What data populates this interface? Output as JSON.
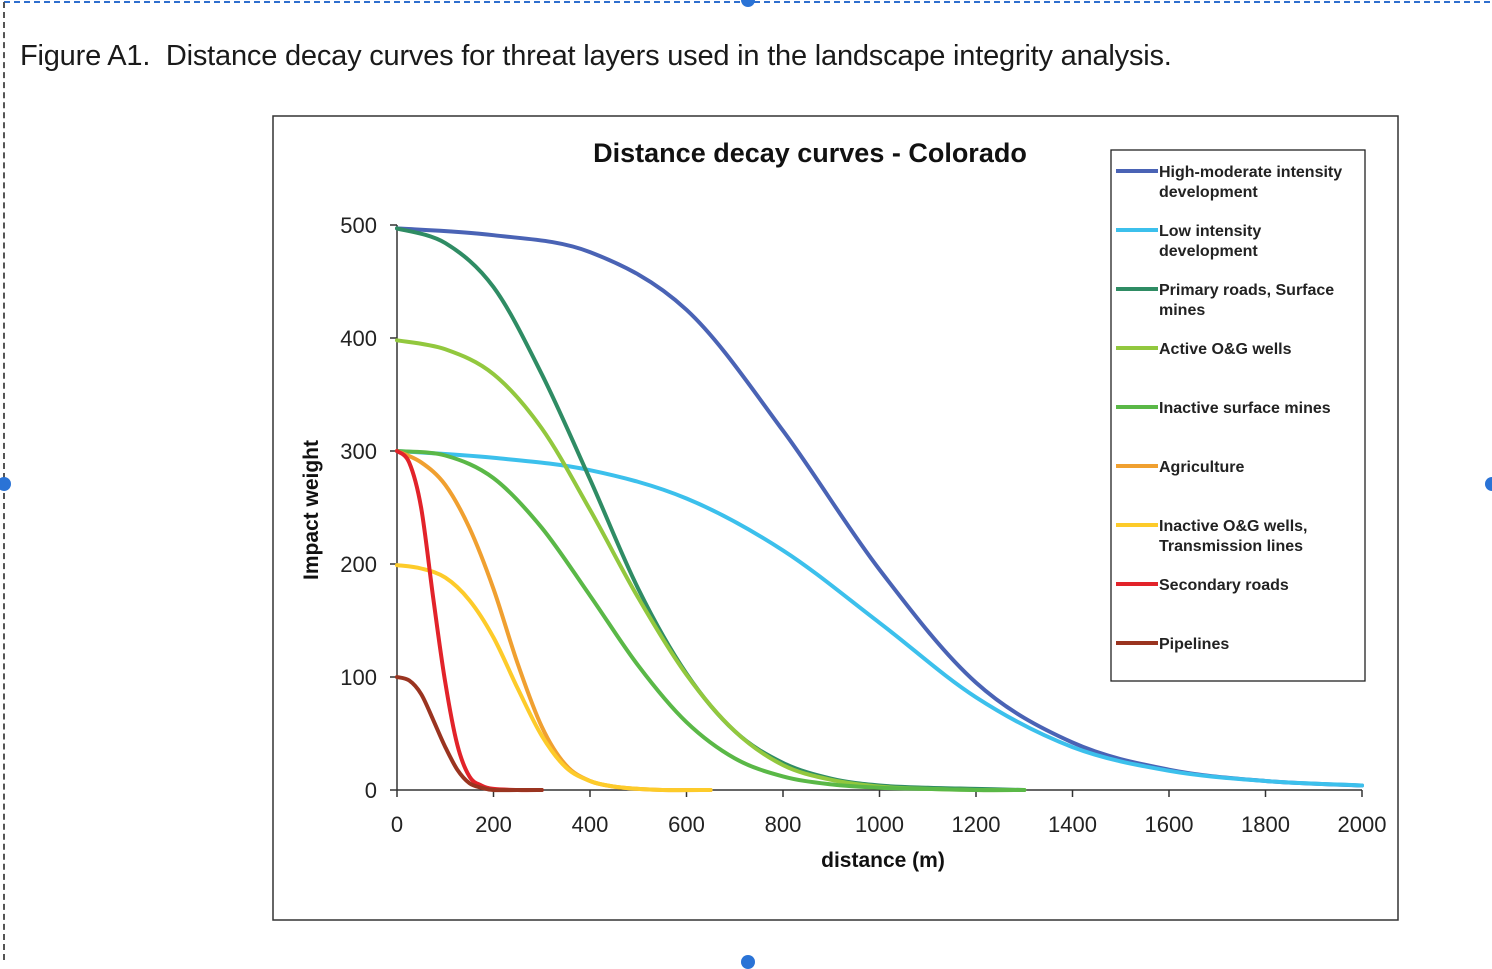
{
  "caption": "Figure A1.  Distance decay curves for threat layers used in the landscape integrity analysis.",
  "colors": {
    "selection_handle": "#2a73d6",
    "axis": "#333333"
  },
  "chart_data": {
    "type": "line",
    "title": "Distance decay curves - Colorado",
    "xlabel": "distance (m)",
    "ylabel": "Impact weight",
    "xlim": [
      0,
      2000
    ],
    "ylim": [
      0,
      500
    ],
    "x_ticks": [
      "0",
      "200",
      "400",
      "600",
      "800",
      "1000",
      "1200",
      "1400",
      "1600",
      "1800",
      "2000"
    ],
    "y_ticks": [
      "0",
      "100",
      "200",
      "300",
      "400",
      "500"
    ],
    "legend_position": "right",
    "series": [
      {
        "name": "High-moderate intensity development",
        "legend_lines": [
          "High-moderate intensity",
          "development"
        ],
        "color": "#4a63b5",
        "x_max": 2000,
        "points": [
          [
            0,
            497
          ],
          [
            200,
            491
          ],
          [
            400,
            476
          ],
          [
            600,
            425
          ],
          [
            800,
            318
          ],
          [
            1000,
            195
          ],
          [
            1200,
            95
          ],
          [
            1400,
            42
          ],
          [
            1600,
            18
          ],
          [
            1800,
            8
          ],
          [
            2000,
            4
          ]
        ]
      },
      {
        "name": "Low intensity development",
        "legend_lines": [
          "Low intensity",
          "development"
        ],
        "color": "#3cc0ec",
        "x_max": 2000,
        "points": [
          [
            0,
            300
          ],
          [
            200,
            294
          ],
          [
            400,
            283
          ],
          [
            600,
            258
          ],
          [
            800,
            212
          ],
          [
            1000,
            148
          ],
          [
            1200,
            82
          ],
          [
            1400,
            38
          ],
          [
            1600,
            17
          ],
          [
            1800,
            8
          ],
          [
            2000,
            4
          ]
        ]
      },
      {
        "name": "Primary roads, Surface mines",
        "legend_lines": [
          "Primary roads, Surface",
          "mines"
        ],
        "color": "#2f8c64",
        "x_max": 1300,
        "points": [
          [
            0,
            497
          ],
          [
            100,
            484
          ],
          [
            200,
            445
          ],
          [
            300,
            368
          ],
          [
            400,
            275
          ],
          [
            500,
            178
          ],
          [
            600,
            103
          ],
          [
            700,
            52
          ],
          [
            800,
            24
          ],
          [
            900,
            10
          ],
          [
            1000,
            4
          ],
          [
            1100,
            2
          ],
          [
            1200,
            1
          ],
          [
            1300,
            0
          ]
        ]
      },
      {
        "name": "Active O&G wells",
        "legend_lines": [
          "Active O&G wells"
        ],
        "color": "#92c83e",
        "x_max": 1300,
        "points": [
          [
            0,
            398
          ],
          [
            100,
            390
          ],
          [
            200,
            368
          ],
          [
            300,
            320
          ],
          [
            400,
            248
          ],
          [
            500,
            170
          ],
          [
            600,
            102
          ],
          [
            700,
            52
          ],
          [
            800,
            22
          ],
          [
            900,
            9
          ],
          [
            1000,
            3
          ],
          [
            1100,
            1
          ],
          [
            1200,
            0
          ],
          [
            1300,
            0
          ]
        ]
      },
      {
        "name": "Inactive surface mines",
        "legend_lines": [
          "Inactive surface mines"
        ],
        "color": "#5ab847",
        "x_max": 1300,
        "points": [
          [
            0,
            300
          ],
          [
            100,
            296
          ],
          [
            200,
            276
          ],
          [
            300,
            232
          ],
          [
            400,
            172
          ],
          [
            500,
            110
          ],
          [
            600,
            60
          ],
          [
            700,
            28
          ],
          [
            800,
            12
          ],
          [
            900,
            5
          ],
          [
            1000,
            2
          ],
          [
            1100,
            1
          ],
          [
            1200,
            0
          ],
          [
            1300,
            0
          ]
        ]
      },
      {
        "name": "Agriculture",
        "legend_lines": [
          "Agriculture"
        ],
        "color": "#f0a030",
        "x_max": 650,
        "points": [
          [
            0,
            300
          ],
          [
            50,
            290
          ],
          [
            100,
            270
          ],
          [
            150,
            232
          ],
          [
            200,
            178
          ],
          [
            250,
            112
          ],
          [
            300,
            56
          ],
          [
            350,
            22
          ],
          [
            400,
            8
          ],
          [
            450,
            3
          ],
          [
            500,
            1
          ],
          [
            550,
            0
          ],
          [
            650,
            0
          ]
        ]
      },
      {
        "name": "Inactive O&G wells, Transmission lines",
        "legend_lines": [
          "Inactive O&G wells,",
          "Transmission lines"
        ],
        "color": "#fdcb2a",
        "x_max": 650,
        "points": [
          [
            0,
            199
          ],
          [
            50,
            196
          ],
          [
            100,
            188
          ],
          [
            150,
            168
          ],
          [
            200,
            135
          ],
          [
            250,
            90
          ],
          [
            300,
            48
          ],
          [
            350,
            20
          ],
          [
            400,
            8
          ],
          [
            450,
            3
          ],
          [
            500,
            1
          ],
          [
            550,
            0
          ],
          [
            650,
            0
          ]
        ]
      },
      {
        "name": "Secondary roads",
        "legend_lines": [
          "Secondary roads"
        ],
        "color": "#e2232a",
        "x_max": 300,
        "points": [
          [
            0,
            300
          ],
          [
            25,
            290
          ],
          [
            50,
            250
          ],
          [
            75,
            170
          ],
          [
            100,
            95
          ],
          [
            125,
            40
          ],
          [
            150,
            12
          ],
          [
            175,
            4
          ],
          [
            200,
            1
          ],
          [
            250,
            0
          ],
          [
            300,
            0
          ]
        ]
      },
      {
        "name": "Pipelines",
        "legend_lines": [
          "Pipelines"
        ],
        "color": "#9a3420",
        "x_max": 300,
        "points": [
          [
            0,
            100
          ],
          [
            25,
            97
          ],
          [
            50,
            85
          ],
          [
            75,
            62
          ],
          [
            100,
            38
          ],
          [
            125,
            18
          ],
          [
            150,
            6
          ],
          [
            175,
            2
          ],
          [
            200,
            0
          ],
          [
            250,
            0
          ],
          [
            300,
            0
          ]
        ]
      }
    ]
  }
}
